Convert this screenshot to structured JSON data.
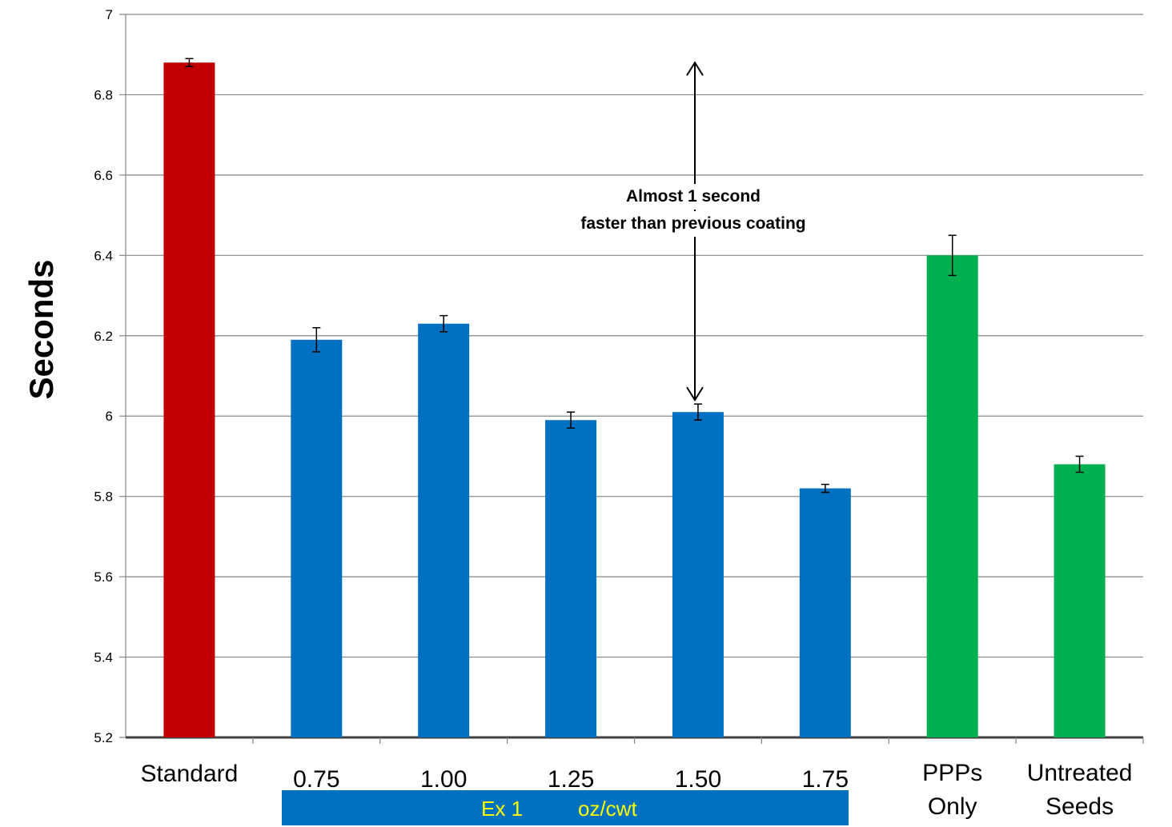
{
  "chart_data": {
    "type": "bar",
    "categories": [
      "Standard",
      "0.75",
      "1.00",
      "1.25",
      "1.50",
      "1.75",
      "PPPs\nOnly",
      "Untreated\nSeeds"
    ],
    "values": [
      6.88,
      6.19,
      6.23,
      5.99,
      6.01,
      5.82,
      6.4,
      5.88
    ],
    "errors": [
      0.01,
      0.03,
      0.02,
      0.02,
      0.02,
      0.01,
      0.05,
      0.02
    ],
    "bar_colors": [
      "#C00000",
      "#0070C0",
      "#0070C0",
      "#0070C0",
      "#0070C0",
      "#0070C0",
      "#00B050",
      "#00B050"
    ],
    "ylabel": "Seconds",
    "ylim": [
      5.2,
      7
    ],
    "yticks": [
      "5.2",
      "5.4",
      "5.6",
      "5.8",
      "6",
      "6.2",
      "6.4",
      "6.6",
      "6.8",
      "7"
    ],
    "grid": true,
    "group_label": {
      "part1": "Ex 1",
      "part2": "oz/cwt",
      "color": "#FFFF00",
      "background": "#0070C0"
    },
    "annotation": {
      "line1": "Almost 1 second",
      "line2": "faster than previous coating",
      "arrow_from": 6.04,
      "arrow_to": 6.88
    }
  }
}
